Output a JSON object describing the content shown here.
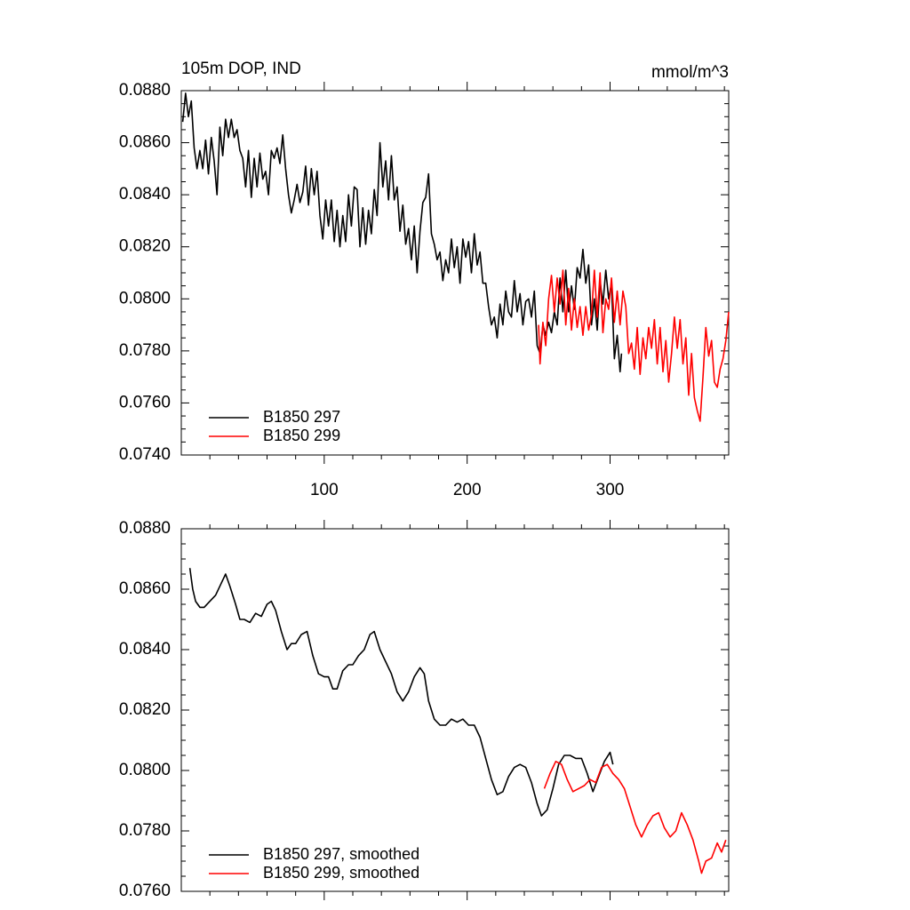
{
  "chart_data": [
    {
      "type": "line",
      "title": "105m DOP, IND",
      "units": "mmol/m^3",
      "xlim": [
        0,
        383
      ],
      "xticks": [
        100,
        200,
        300
      ],
      "xticklabels": true,
      "ylim": [
        0.074,
        0.088
      ],
      "yticks": [
        {
          "value": 0.074,
          "label": "0.0740"
        },
        {
          "value": 0.076,
          "label": "0.0760"
        },
        {
          "value": 0.078,
          "label": "0.0780"
        },
        {
          "value": 0.08,
          "label": "0.0800"
        },
        {
          "value": 0.082,
          "label": "0.0820"
        },
        {
          "value": 0.084,
          "label": "0.0840"
        },
        {
          "value": 0.086,
          "label": "0.0860"
        },
        {
          "value": 0.088,
          "label": "0.0880"
        }
      ],
      "series": [
        {
          "name": "B1850 297",
          "color": "#000000",
          "x": [
            1,
            3,
            5,
            7,
            9,
            11,
            13,
            15,
            17,
            19,
            21,
            23,
            25,
            27,
            29,
            31,
            33,
            35,
            37,
            39,
            41,
            43,
            45,
            47,
            49,
            51,
            53,
            55,
            57,
            59,
            61,
            63,
            65,
            67,
            69,
            71,
            73,
            75,
            77,
            79,
            81,
            83,
            85,
            87,
            89,
            91,
            93,
            95,
            97,
            99,
            101,
            103,
            105,
            107,
            109,
            111,
            113,
            115,
            117,
            119,
            121,
            123,
            125,
            127,
            129,
            131,
            133,
            135,
            137,
            139,
            141,
            143,
            145,
            147,
            149,
            151,
            153,
            155,
            157,
            159,
            161,
            163,
            165,
            167,
            169,
            171,
            173,
            175,
            177,
            179,
            181,
            183,
            185,
            187,
            189,
            191,
            193,
            195,
            197,
            199,
            201,
            203,
            205,
            207,
            209,
            211,
            213,
            215,
            217,
            219,
            221,
            223,
            225,
            227,
            229,
            231,
            233,
            235,
            237,
            239,
            241,
            243,
            245,
            247,
            249,
            251,
            253,
            255,
            257,
            259,
            261,
            263,
            265,
            267,
            269,
            271,
            273,
            275,
            277,
            279,
            281,
            283,
            285,
            287,
            289,
            291,
            293,
            295,
            297,
            299,
            301,
            303,
            305,
            307,
            308
          ],
          "values": [
            0.0868,
            0.0879,
            0.087,
            0.0876,
            0.0858,
            0.085,
            0.0857,
            0.085,
            0.0861,
            0.0848,
            0.0862,
            0.0853,
            0.084,
            0.0866,
            0.0855,
            0.0869,
            0.0862,
            0.0869,
            0.0862,
            0.0865,
            0.0857,
            0.0854,
            0.0843,
            0.0857,
            0.0839,
            0.0854,
            0.0843,
            0.0856,
            0.0846,
            0.0849,
            0.084,
            0.0857,
            0.0854,
            0.0858,
            0.0852,
            0.0863,
            0.085,
            0.084,
            0.0833,
            0.0838,
            0.0844,
            0.0837,
            0.0841,
            0.0851,
            0.0836,
            0.085,
            0.084,
            0.0849,
            0.0832,
            0.0823,
            0.0838,
            0.0828,
            0.0838,
            0.0822,
            0.0834,
            0.082,
            0.0832,
            0.0822,
            0.084,
            0.0828,
            0.0843,
            0.0842,
            0.082,
            0.0835,
            0.0821,
            0.0834,
            0.0825,
            0.0842,
            0.0832,
            0.086,
            0.0843,
            0.0853,
            0.0838,
            0.0855,
            0.0838,
            0.0843,
            0.0826,
            0.0836,
            0.0821,
            0.0827,
            0.0815,
            0.0828,
            0.081,
            0.0826,
            0.0837,
            0.0839,
            0.0848,
            0.0825,
            0.0821,
            0.0815,
            0.0818,
            0.0807,
            0.0815,
            0.081,
            0.0823,
            0.0812,
            0.082,
            0.0806,
            0.0823,
            0.0816,
            0.0822,
            0.081,
            0.0825,
            0.0813,
            0.0818,
            0.0806,
            0.0806,
            0.0797,
            0.079,
            0.0793,
            0.0785,
            0.0798,
            0.079,
            0.0803,
            0.0795,
            0.0793,
            0.0807,
            0.0795,
            0.0802,
            0.079,
            0.0799,
            0.08,
            0.0793,
            0.0803,
            0.0782,
            0.0779,
            0.079,
            0.0786,
            0.0791,
            0.0787,
            0.0795,
            0.079,
            0.0808,
            0.0795,
            0.0811,
            0.0795,
            0.0805,
            0.0796,
            0.0812,
            0.0808,
            0.0819,
            0.0806,
            0.0813,
            0.079,
            0.08,
            0.0788,
            0.0807,
            0.0798,
            0.0811,
            0.08,
            0.0806,
            0.0777,
            0.0786,
            0.0772,
            0.0779
          ]
        },
        {
          "name": "B1850 299",
          "color": "#ff0000",
          "x": [
            250,
            251,
            253,
            255,
            257,
            259,
            261,
            263,
            265,
            267,
            269,
            271,
            273,
            275,
            277,
            279,
            281,
            283,
            285,
            287,
            289,
            291,
            293,
            295,
            297,
            299,
            301,
            303,
            305,
            307,
            309,
            311,
            313,
            315,
            317,
            319,
            321,
            323,
            325,
            327,
            329,
            331,
            333,
            335,
            337,
            339,
            341,
            343,
            345,
            347,
            349,
            351,
            353,
            355,
            357,
            359,
            361,
            363,
            365,
            367,
            369,
            371,
            373,
            375,
            377,
            379,
            381,
            383
          ],
          "values": [
            0.079,
            0.0775,
            0.0791,
            0.0782,
            0.08,
            0.0809,
            0.0795,
            0.0808,
            0.0798,
            0.0811,
            0.079,
            0.0804,
            0.0788,
            0.08,
            0.0789,
            0.0797,
            0.0786,
            0.0797,
            0.0788,
            0.0794,
            0.0811,
            0.0793,
            0.081,
            0.0787,
            0.08,
            0.0796,
            0.0808,
            0.0791,
            0.0803,
            0.079,
            0.0803,
            0.0797,
            0.0779,
            0.0783,
            0.0773,
            0.0789,
            0.0771,
            0.0785,
            0.0777,
            0.0789,
            0.0781,
            0.0792,
            0.0775,
            0.0789,
            0.0772,
            0.0784,
            0.0768,
            0.0779,
            0.0793,
            0.0781,
            0.0792,
            0.0775,
            0.0785,
            0.0763,
            0.0779,
            0.0762,
            0.0757,
            0.0753,
            0.077,
            0.0789,
            0.0778,
            0.0784,
            0.0768,
            0.0766,
            0.0773,
            0.0777,
            0.0784,
            0.0795
          ]
        }
      ]
    },
    {
      "type": "line",
      "xlim": [
        0,
        383
      ],
      "xticks": [
        100,
        200,
        300
      ],
      "xticklabels": false,
      "ylim": [
        0.076,
        0.088
      ],
      "yticks": [
        {
          "value": 0.076,
          "label": "0.0760"
        },
        {
          "value": 0.078,
          "label": "0.0780"
        },
        {
          "value": 0.08,
          "label": "0.0800"
        },
        {
          "value": 0.082,
          "label": "0.0820"
        },
        {
          "value": 0.084,
          "label": "0.0840"
        },
        {
          "value": 0.086,
          "label": "0.0860"
        },
        {
          "value": 0.088,
          "label": "0.0880"
        }
      ],
      "series": [
        {
          "name": "B1850 297, smoothed",
          "color": "#000000",
          "x": [
            6,
            8,
            10,
            13,
            16,
            20,
            24,
            28,
            31,
            34,
            38,
            41,
            44,
            48,
            52,
            56,
            60,
            63,
            66,
            70,
            74,
            77,
            80,
            84,
            88,
            92,
            96,
            100,
            103,
            106,
            109,
            113,
            117,
            120,
            124,
            128,
            132,
            135,
            139,
            143,
            147,
            151,
            155,
            159,
            163,
            167,
            170,
            173,
            177,
            181,
            185,
            189,
            193,
            197,
            201,
            205,
            209,
            213,
            217,
            221,
            225,
            229,
            233,
            237,
            241,
            245,
            249,
            252,
            256,
            260,
            264,
            268,
            272,
            276,
            280,
            284,
            288,
            292,
            296,
            300,
            302
          ],
          "values": [
            0.0867,
            0.086,
            0.0856,
            0.0854,
            0.0854,
            0.0856,
            0.0858,
            0.0862,
            0.0865,
            0.0861,
            0.0855,
            0.085,
            0.085,
            0.0849,
            0.0852,
            0.0851,
            0.0855,
            0.0856,
            0.0853,
            0.0846,
            0.084,
            0.0842,
            0.0842,
            0.0845,
            0.0846,
            0.0838,
            0.0832,
            0.0831,
            0.0831,
            0.0827,
            0.0827,
            0.0833,
            0.0835,
            0.0835,
            0.0838,
            0.084,
            0.0845,
            0.0846,
            0.084,
            0.0836,
            0.0832,
            0.0826,
            0.0823,
            0.0826,
            0.0831,
            0.0834,
            0.0832,
            0.0823,
            0.0817,
            0.0815,
            0.0815,
            0.0817,
            0.0816,
            0.0817,
            0.0815,
            0.0815,
            0.0811,
            0.0804,
            0.0797,
            0.0792,
            0.0793,
            0.0798,
            0.0801,
            0.0802,
            0.0801,
            0.0796,
            0.0789,
            0.0785,
            0.0787,
            0.0794,
            0.0802,
            0.0805,
            0.0805,
            0.0804,
            0.0804,
            0.0799,
            0.0793,
            0.0798,
            0.0803,
            0.0806,
            0.0802
          ]
        },
        {
          "name": "B1850 299, smoothed",
          "color": "#ff0000",
          "x": [
            254,
            258,
            262,
            266,
            270,
            274,
            278,
            282,
            286,
            290,
            294,
            298,
            302,
            306,
            310,
            314,
            318,
            322,
            326,
            330,
            334,
            338,
            342,
            346,
            350,
            354,
            358,
            362,
            364,
            367,
            371,
            375,
            378,
            381
          ],
          "values": [
            0.0794,
            0.0799,
            0.0803,
            0.0802,
            0.0797,
            0.0793,
            0.0794,
            0.0795,
            0.0797,
            0.0796,
            0.0801,
            0.0802,
            0.0799,
            0.0797,
            0.0794,
            0.0788,
            0.0782,
            0.0778,
            0.0782,
            0.0785,
            0.0786,
            0.0781,
            0.0778,
            0.078,
            0.0786,
            0.0782,
            0.0777,
            0.077,
            0.0766,
            0.077,
            0.0771,
            0.0776,
            0.0773,
            0.0777
          ]
        }
      ]
    }
  ]
}
